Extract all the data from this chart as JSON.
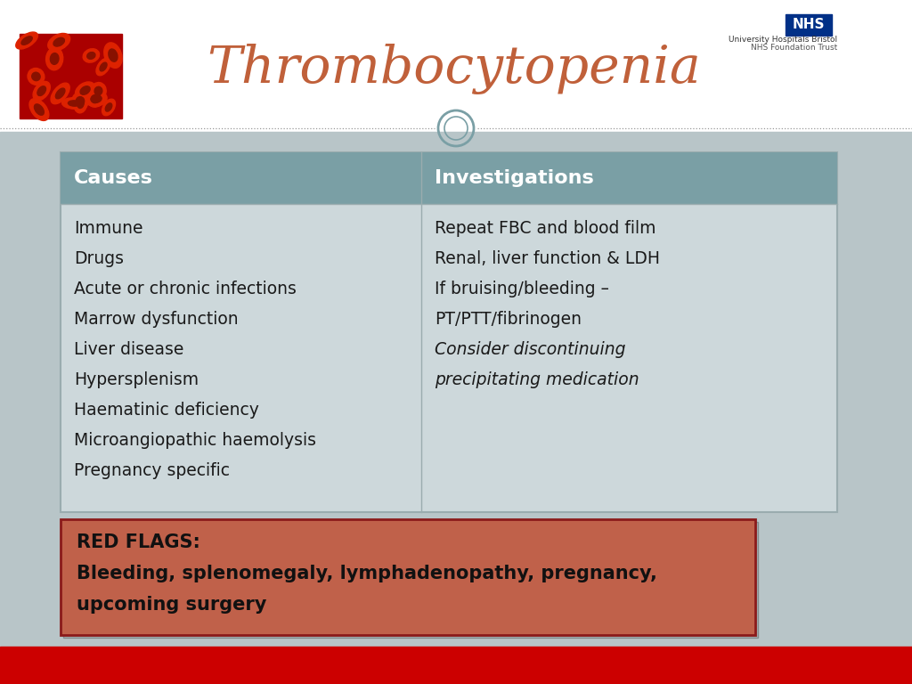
{
  "title": "Thrombocytopenia",
  "title_color": "#C0603A",
  "title_fontsize": 42,
  "bg_color_top": "#FFFFFF",
  "bg_color_bottom": "#B8C5C8",
  "header_bg": "#7A9FA5",
  "header_text_color": "#FFFFFF",
  "table_bg": "#CDD8DB",
  "table_border_color": "#9AACAF",
  "causes_header": "Causes",
  "investigations_header": "Investigations",
  "causes": [
    "Immune",
    "Drugs",
    "Acute or chronic infections",
    "Marrow dysfunction",
    "Liver disease",
    "Hypersplenism",
    "Haematinic deficiency",
    "Microangiopathic haemolysis",
    "Pregnancy specific"
  ],
  "investigations_normal": [
    "Repeat FBC and blood film",
    "Renal, liver function & LDH",
    "If bruising/bleeding –",
    "PT/PTT/fibrinogen"
  ],
  "investigations_italic": [
    "Consider discontinuing",
    "precipitating medication"
  ],
  "red_flags_bg": "#C0614A",
  "red_flags_border": "#8B1A1A",
  "red_flags_text_bold": "RED FLAGS:",
  "red_flags_text_line2": "Bleeding, splenomegaly, lymphadenopathy, pregnancy,",
  "red_flags_text_line3": "upcoming surgery",
  "red_flags_color": "#111111",
  "bottom_bar_color": "#CC0000",
  "nhs_bg": "#003087",
  "nhs_text": "NHS",
  "hospital_text1": "University Hospitals Bristol",
  "hospital_text2": "NHS Foundation Trust",
  "separator_color": "#999999",
  "circle_color": "#7A9FA5",
  "divider_color": "#9AACAF"
}
